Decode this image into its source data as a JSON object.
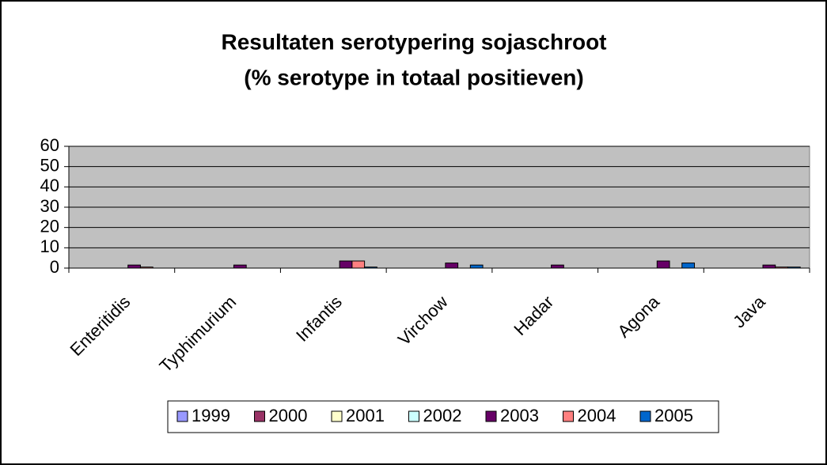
{
  "chart_data": {
    "type": "bar",
    "title": "Resultaten serotypering sojaschroot",
    "subtitle": "(% serotype in totaal positieven)",
    "categories": [
      "Enteritidis",
      "Typhimurium",
      "Infantis",
      "Virchow",
      "Hadar",
      "Agona",
      "Java"
    ],
    "series": [
      {
        "name": "1999",
        "color": "#9999ff",
        "values": [
          0,
          0,
          0,
          0,
          0,
          0,
          0
        ]
      },
      {
        "name": "2000",
        "color": "#993366",
        "values": [
          0,
          0,
          0,
          0,
          0,
          0,
          0
        ]
      },
      {
        "name": "2001",
        "color": "#ffffcc",
        "values": [
          0,
          0,
          0,
          0,
          0,
          0,
          0
        ]
      },
      {
        "name": "2002",
        "color": "#ccffff",
        "values": [
          0,
          0,
          0,
          0,
          0,
          0,
          0
        ]
      },
      {
        "name": "2003",
        "color": "#660066",
        "values": [
          1.5,
          1.5,
          3.5,
          2.5,
          1.5,
          3.5,
          1.5
        ]
      },
      {
        "name": "2004",
        "color": "#ff8080",
        "values": [
          0.5,
          0,
          3.5,
          0,
          0,
          0,
          0.5
        ]
      },
      {
        "name": "2005",
        "color": "#0066cc",
        "values": [
          0,
          0,
          0.5,
          1.5,
          0,
          2.5,
          0.5
        ]
      }
    ],
    "ylim": [
      0,
      60
    ],
    "yticks": [
      0,
      10,
      20,
      30,
      40,
      50,
      60
    ],
    "grid": true,
    "legend": "bottom"
  }
}
